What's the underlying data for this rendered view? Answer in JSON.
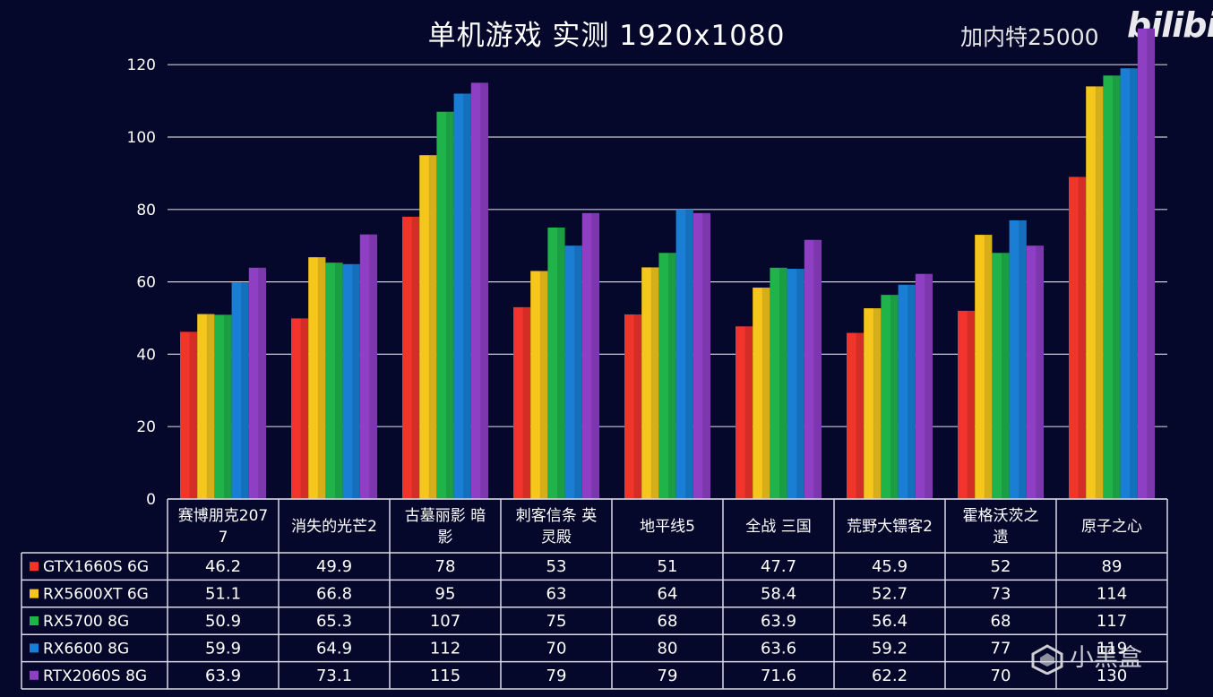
{
  "header": {
    "title": "单机游戏  实测    1920x1080",
    "subtitle": "加内特25000",
    "watermark": "bilibili",
    "corner_logo": "小黑盒"
  },
  "chart_data": {
    "type": "bar",
    "title": "单机游戏  实测    1920x1080",
    "subtitle": "加内特25000",
    "categories": [
      [
        "赛博朋克207",
        "7"
      ],
      [
        "消失的光芒2"
      ],
      [
        "古墓丽影 暗",
        "影"
      ],
      [
        "刺客信条 英",
        "灵殿"
      ],
      [
        "地平线5"
      ],
      [
        "全战 三国"
      ],
      [
        "荒野大镖客2"
      ],
      [
        "霍格沃茨之",
        "遗"
      ],
      [
        "原子之心"
      ]
    ],
    "series": [
      {
        "name": "GTX1660S 6G",
        "color": "#f2342c",
        "values": [
          "46.2",
          "49.9",
          "78",
          "53",
          "51",
          "47.7",
          "45.9",
          "52",
          "89"
        ]
      },
      {
        "name": "RX5600XT 6G",
        "color": "#f6c61c",
        "values": [
          "51.1",
          "66.8",
          "95",
          "63",
          "64",
          "58.4",
          "52.7",
          "73",
          "114"
        ]
      },
      {
        "name": "RX5700 8G",
        "color": "#1fb34a",
        "values": [
          "50.9",
          "65.3",
          "107",
          "75",
          "68",
          "63.9",
          "56.4",
          "68",
          "117"
        ]
      },
      {
        "name": "RX6600 8G",
        "color": "#1a7fd4",
        "values": [
          "59.9",
          "64.9",
          "112",
          "70",
          "80",
          "63.6",
          "59.2",
          "77",
          "119"
        ]
      },
      {
        "name": "RTX2060S 8G",
        "color": "#8e3fc4",
        "values": [
          "63.9",
          "73.1",
          "115",
          "79",
          "79",
          "71.6",
          "62.2",
          "70",
          "130"
        ]
      }
    ],
    "yticks": [
      "0",
      "20",
      "40",
      "60",
      "80",
      "100",
      "120"
    ],
    "ylim": [
      0,
      130
    ],
    "grid": true,
    "legend": "data-table-below"
  }
}
